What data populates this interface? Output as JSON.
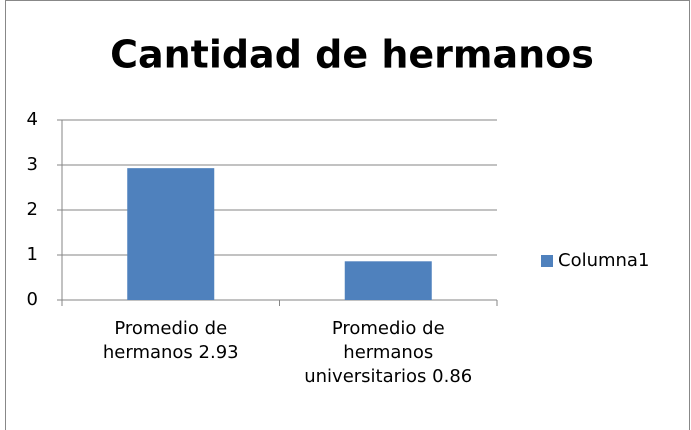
{
  "chart_data": {
    "type": "bar",
    "title": "Cantidad de hermanos",
    "categories": [
      "Promedio de hermanos 2.93",
      "Promedio de hermanos universitarios 0.86"
    ],
    "series": [
      {
        "name": "Columna1",
        "color": "#4f81bd",
        "values": [
          2.93,
          0.86
        ]
      }
    ],
    "ylim": [
      0,
      4
    ],
    "yticks": [
      0,
      1,
      2,
      3,
      4
    ],
    "grid": true,
    "legend": "right"
  }
}
